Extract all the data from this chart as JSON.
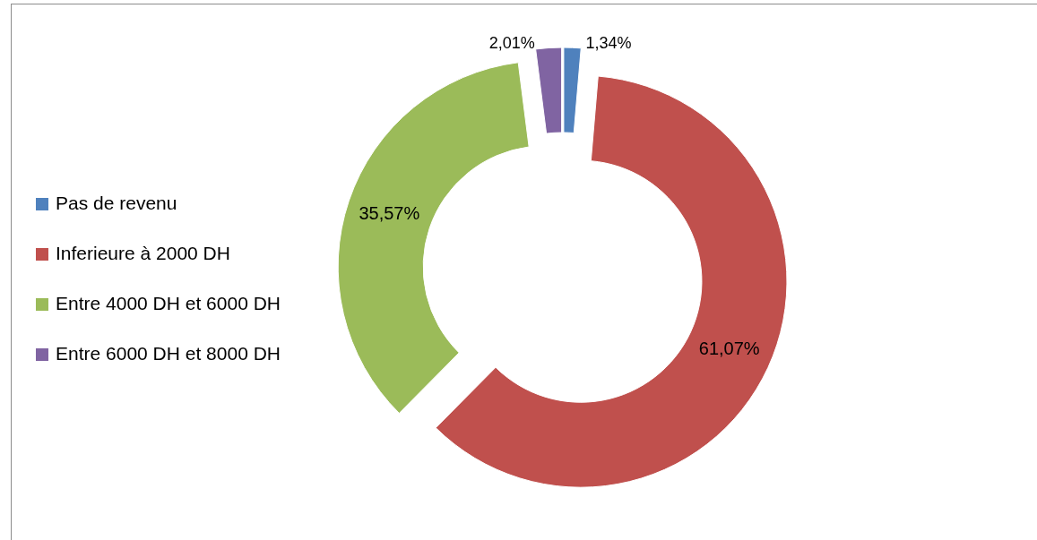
{
  "chart_data": {
    "type": "donut",
    "categories": [
      "Pas de revenu",
      "Inferieure à 2000 DH",
      "Entre 4000 DH et 6000 DH",
      "Entre 6000 DH et 8000 DH"
    ],
    "values": [
      1.34,
      61.07,
      35.57,
      2.01
    ],
    "colors": [
      "#4f81bd",
      "#c0504d",
      "#9bbb59",
      "#8064a2"
    ],
    "value_labels": [
      "1,34%",
      "61,07%",
      "35,57%",
      "2,01%"
    ],
    "legend": "left"
  }
}
